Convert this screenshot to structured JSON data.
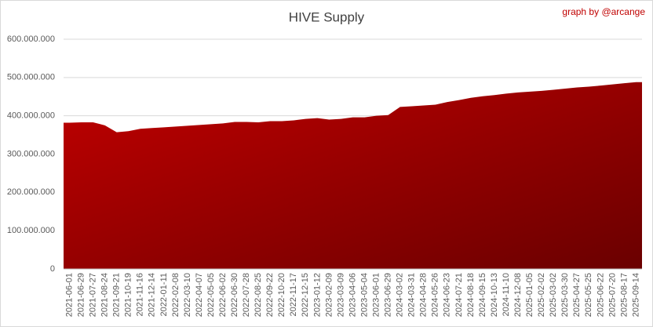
{
  "chart_data": {
    "type": "area",
    "title": "HIVE Supply",
    "annotation": "graph by @arcange",
    "categories": [
      "2021-06-01",
      "2021-06-29",
      "2021-07-27",
      "2021-08-24",
      "2021-09-21",
      "2021-10-19",
      "2021-11-16",
      "2021-12-14",
      "2022-01-11",
      "2022-02-08",
      "2022-03-10",
      "2022-04-07",
      "2022-05-05",
      "2022-06-02",
      "2022-06-30",
      "2022-07-28",
      "2022-08-25",
      "2022-09-22",
      "2022-10-20",
      "2022-11-17",
      "2022-12-15",
      "2023-01-12",
      "2023-02-09",
      "2023-03-09",
      "2023-04-06",
      "2023-05-04",
      "2023-06-01",
      "2023-06-29",
      "2024-03-02",
      "2024-03-31",
      "2024-04-28",
      "2024-05-26",
      "2024-06-23",
      "2024-07-21",
      "2024-08-18",
      "2024-09-15",
      "2024-10-13",
      "2024-11-10",
      "2024-12-08",
      "2025-01-05",
      "2025-02-02",
      "2025-03-02",
      "2025-03-30",
      "2025-04-27",
      "2025-05-25",
      "2025-06-22",
      "2025-07-20",
      "2025-08-17",
      "2025-09-14"
    ],
    "values": [
      382000000,
      383000000,
      383000000,
      375000000,
      357000000,
      360000000,
      366000000,
      368000000,
      370000000,
      372000000,
      374000000,
      376000000,
      378000000,
      380000000,
      384000000,
      384000000,
      383000000,
      386000000,
      386000000,
      388000000,
      392000000,
      394000000,
      390000000,
      392000000,
      396000000,
      396000000,
      400000000,
      402000000,
      423000000,
      425000000,
      427000000,
      429000000,
      436000000,
      441000000,
      447000000,
      451000000,
      454000000,
      458000000,
      461000000,
      463000000,
      465000000,
      468000000,
      471000000,
      474000000,
      476000000,
      479000000,
      482000000,
      485000000,
      488000000
    ],
    "colors": [
      "#c00000",
      "#6a0000"
    ],
    "ylim": [
      0,
      600000000
    ],
    "yticks": [
      0,
      {
        "value": 100000000,
        "label": "100.000.000"
      },
      {
        "value": 200000000,
        "label": "200.000.000"
      },
      {
        "value": 300000000,
        "label": "300.000.000"
      },
      {
        "value": 400000000,
        "label": "400.000.000"
      },
      {
        "value": 500000000,
        "label": "500.000.000"
      },
      {
        "value": 600000000,
        "label": "600.000.000"
      }
    ],
    "grid": true
  }
}
